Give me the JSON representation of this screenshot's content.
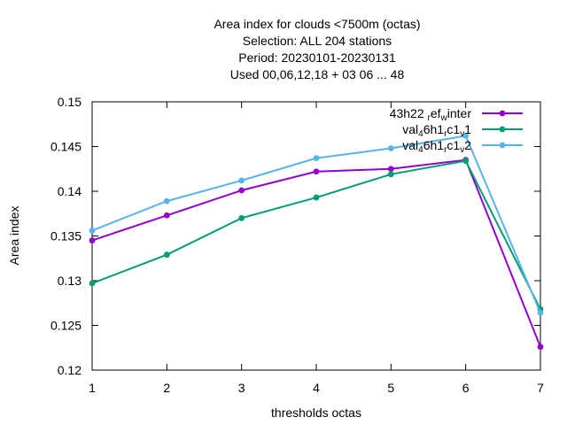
{
  "chart_data": {
    "type": "line",
    "title_lines": [
      "Area index  for clouds <7500m (octas)",
      "Selection: ALL    204 stations",
      "Period: 20230101-20230131",
      "Used  00,06,12,18  + 03 06 ... 48"
    ],
    "xlabel": "thresholds octas",
    "ylabel": "Area index",
    "xlim": [
      1,
      7
    ],
    "ylim": [
      0.12,
      0.15
    ],
    "x_ticks": [
      1,
      2,
      3,
      4,
      5,
      6,
      7
    ],
    "y_ticks": [
      0.12,
      0.125,
      0.13,
      0.135,
      0.14,
      0.145,
      0.15
    ],
    "y_tick_labels": [
      "0.12",
      "0.125",
      "0.13",
      "0.135",
      "0.14",
      "0.145",
      "0.15"
    ],
    "legend_position": "top-right",
    "grid": false,
    "x": [
      1,
      2,
      3,
      4,
      5,
      6,
      7
    ],
    "series": [
      {
        "name": "43h22_ref_winter",
        "legend": {
          "parts": [
            [
              "43h22 ",
              "n"
            ],
            [
              "r",
              "sub"
            ],
            [
              "ef",
              "n"
            ],
            [
              "w",
              "sub"
            ],
            [
              "inter",
              "n"
            ]
          ]
        },
        "color": "#9400d3",
        "values": [
          0.1345,
          0.1373,
          0.1401,
          0.1422,
          0.1425,
          0.1435,
          0.1226
        ]
      },
      {
        "name": "val_46h1_rc1_v1",
        "legend": {
          "parts": [
            [
              "val",
              "n"
            ],
            [
              "4",
              "sub"
            ],
            [
              "6h1",
              "n"
            ],
            [
              "r",
              "sub"
            ],
            [
              "c1",
              "n"
            ],
            [
              "v",
              "sub"
            ],
            [
              "1",
              "n"
            ]
          ]
        },
        "color": "#009e73",
        "values": [
          0.1297,
          0.1329,
          0.137,
          0.1393,
          0.1419,
          0.1434,
          0.1268
        ]
      },
      {
        "name": "val_46h1_rc1_v2",
        "legend": {
          "parts": [
            [
              "val",
              "n"
            ],
            [
              "4",
              "sub"
            ],
            [
              "6h1",
              "n"
            ],
            [
              "r",
              "sub"
            ],
            [
              "c1",
              "n"
            ],
            [
              "v",
              "sub"
            ],
            [
              "2",
              "n"
            ]
          ]
        },
        "color": "#56b4e9",
        "values": [
          0.1356,
          0.1389,
          0.1412,
          0.1437,
          0.1448,
          0.1462,
          0.1264
        ]
      }
    ]
  }
}
